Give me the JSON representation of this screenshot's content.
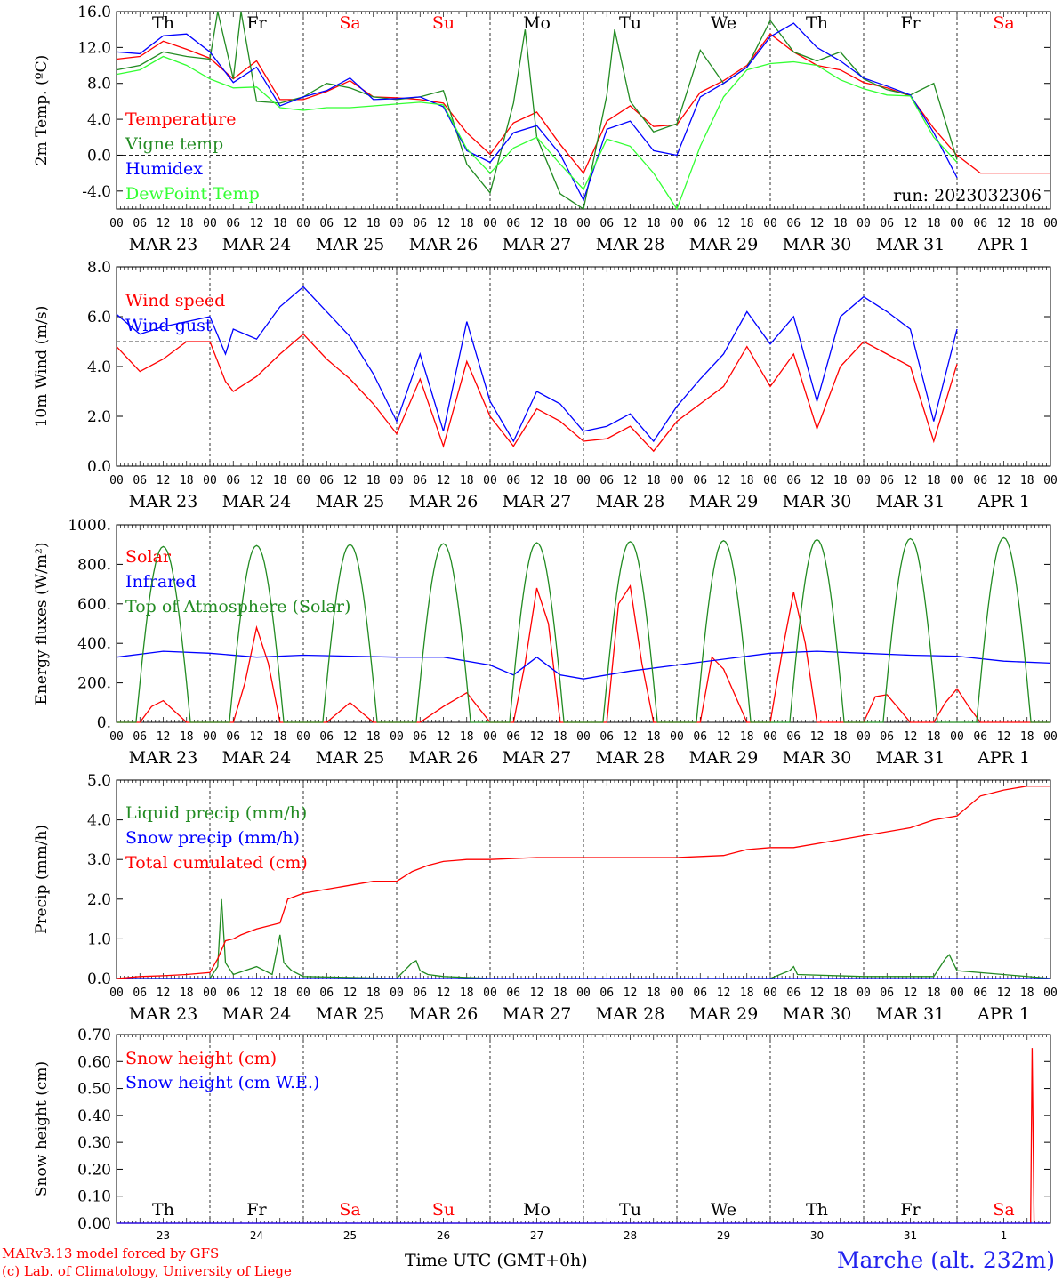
{
  "chart_data": [
    {
      "type": "line",
      "ylabel": "2m Temp. (ºC)",
      "ylim": [
        -6,
        16
      ],
      "yticks": [
        "-4.0",
        "0.0",
        "4.0",
        "8.0",
        "12.0",
        "16.0"
      ],
      "annotation": "run: 2023032306",
      "series": [
        {
          "name": "Temperature",
          "color": "#ff0000",
          "x": [
            0,
            6,
            12,
            18,
            24,
            30,
            36,
            42,
            48,
            54,
            60,
            66,
            72,
            78,
            84,
            90,
            96,
            102,
            108,
            114,
            120,
            126,
            132,
            138,
            144,
            150,
            156,
            162,
            168,
            174,
            180,
            186,
            192,
            198,
            204,
            210,
            216,
            222,
            228,
            234,
            240
          ],
          "y": [
            10.7,
            11,
            12.7,
            11.8,
            10.8,
            8.5,
            10.5,
            6.2,
            6.2,
            7.1,
            8.3,
            6.5,
            6.4,
            6.2,
            5.8,
            2.5,
            0.1,
            3.6,
            4.8,
            1.2,
            -2.0,
            3.8,
            5.5,
            3.2,
            3.4,
            7.0,
            8.3,
            10.0,
            13.5,
            11.5,
            10.0,
            9.5,
            8.1,
            7.5,
            6.6,
            3.0,
            0.0,
            -2,
            -2,
            -2,
            -2
          ]
        },
        {
          "name": "Vigne temp",
          "color": "#228b22",
          "x": [
            0,
            6,
            12,
            18,
            24,
            26,
            30,
            32,
            36,
            42,
            48,
            54,
            60,
            66,
            72,
            78,
            84,
            90,
            96,
            102,
            105,
            108,
            114,
            120,
            126,
            128,
            132,
            138,
            144,
            150,
            156,
            162,
            168,
            174,
            180,
            186,
            192,
            198,
            204,
            210,
            216
          ],
          "y": [
            9.5,
            10,
            11.5,
            11,
            10.7,
            16,
            8.5,
            16,
            6,
            5.8,
            6.5,
            8,
            7.5,
            6.5,
            6.2,
            6.5,
            7.2,
            -1,
            -4.2,
            5.8,
            14,
            2,
            -4.3,
            -6,
            6.7,
            14,
            6,
            2.6,
            3.5,
            11.7,
            8,
            9.8,
            15,
            11.5,
            10.5,
            11.5,
            8.5,
            7.3,
            6.7,
            8,
            -0.5
          ]
        },
        {
          "name": "Humidex",
          "color": "#0000ff",
          "x": [
            0,
            6,
            12,
            18,
            24,
            30,
            36,
            42,
            48,
            54,
            60,
            66,
            72,
            78,
            84,
            90,
            96,
            102,
            108,
            114,
            120,
            126,
            132,
            138,
            144,
            150,
            156,
            162,
            168,
            174,
            180,
            186,
            192,
            198,
            204,
            210,
            216
          ],
          "y": [
            11.5,
            11.3,
            13.3,
            13.5,
            11.5,
            8.1,
            9.8,
            5.5,
            6.5,
            7.2,
            8.6,
            6.2,
            6.3,
            6.5,
            5.4,
            0.5,
            -0.8,
            2.5,
            3.3,
            0.1,
            -5.0,
            2.9,
            3.8,
            0.5,
            0.0,
            6.5,
            8.0,
            9.8,
            13.2,
            14.7,
            12.0,
            10.5,
            8.6,
            7.7,
            6.7,
            2.5,
            -2.5
          ]
        },
        {
          "name": "DewPoint Temp",
          "color": "#33ff33",
          "x": [
            0,
            6,
            12,
            18,
            24,
            30,
            36,
            42,
            48,
            54,
            60,
            66,
            72,
            78,
            84,
            90,
            96,
            102,
            108,
            114,
            120,
            126,
            132,
            138,
            144,
            150,
            156,
            162,
            168,
            174,
            180,
            186,
            192,
            198,
            204,
            210,
            216
          ],
          "y": [
            9,
            9.5,
            11,
            10,
            8.5,
            7.5,
            7.6,
            5.3,
            5.0,
            5.3,
            5.3,
            5.5,
            5.7,
            5.9,
            5.6,
            0.7,
            -2.0,
            0.8,
            2.0,
            -1,
            -3.8,
            1.8,
            1.0,
            -2.0,
            -6.0,
            1.0,
            6.5,
            9.5,
            10.2,
            10.4,
            10.0,
            8.4,
            7.4,
            6.7,
            6.6,
            2.0,
            -0.8
          ]
        }
      ]
    },
    {
      "type": "line",
      "ylabel": "10m Wind (m/s)",
      "ylim": [
        0,
        8
      ],
      "yticks": [
        "0.0",
        "2.0",
        "4.0",
        "6.0",
        "8.0"
      ],
      "series": [
        {
          "name": "Wind speed",
          "color": "#ff0000",
          "x": [
            0,
            6,
            12,
            18,
            24,
            28,
            30,
            36,
            42,
            48,
            54,
            60,
            66,
            72,
            78,
            84,
            90,
            96,
            102,
            108,
            114,
            120,
            126,
            132,
            138,
            144,
            150,
            156,
            162,
            168,
            174,
            180,
            186,
            192,
            198,
            204,
            210,
            216
          ],
          "y": [
            4.8,
            3.8,
            4.3,
            5,
            5,
            3.4,
            3.0,
            3.6,
            4.5,
            5.3,
            4.3,
            3.5,
            2.5,
            1.3,
            3.5,
            0.8,
            4.2,
            2.0,
            0.8,
            2.3,
            1.8,
            1.0,
            1.1,
            1.6,
            0.6,
            1.8,
            2.5,
            3.2,
            4.8,
            3.2,
            4.5,
            1.5,
            4.0,
            5.0,
            4.5,
            4.0,
            1.0,
            4.1
          ]
        },
        {
          "name": "Wind gust",
          "color": "#0000ff",
          "x": [
            0,
            6,
            12,
            18,
            24,
            28,
            30,
            36,
            42,
            48,
            54,
            60,
            66,
            72,
            78,
            84,
            90,
            96,
            102,
            108,
            114,
            120,
            126,
            132,
            138,
            144,
            150,
            156,
            162,
            168,
            174,
            180,
            186,
            192,
            198,
            204,
            210,
            216
          ],
          "y": [
            6.1,
            5.3,
            5.6,
            5.8,
            6.0,
            4.5,
            5.5,
            5.1,
            6.4,
            7.2,
            6.2,
            5.2,
            3.7,
            1.8,
            4.5,
            1.4,
            5.8,
            2.6,
            1.0,
            3.0,
            2.5,
            1.4,
            1.6,
            2.1,
            1.0,
            2.4,
            3.5,
            4.5,
            6.2,
            4.9,
            6.0,
            2.6,
            6.0,
            6.8,
            6.2,
            5.5,
            1.8,
            5.5
          ]
        }
      ]
    },
    {
      "type": "line",
      "ylabel": "Energy fluxes (W/m²)",
      "ylim": [
        0,
        1000
      ],
      "yticks": [
        "0.",
        "200.",
        "400.",
        "600.",
        "800.",
        "1000."
      ],
      "series": [
        {
          "name": "Solar",
          "color": "#ff0000",
          "x": [
            0,
            6,
            9,
            12,
            18,
            24,
            30,
            33,
            36,
            39,
            42,
            48,
            54,
            60,
            66,
            72,
            78,
            84,
            90,
            96,
            102,
            105,
            108,
            111,
            114,
            120,
            126,
            129,
            132,
            135,
            138,
            144,
            150,
            153,
            156,
            162,
            168,
            171,
            174,
            177,
            180,
            186,
            192,
            195,
            198,
            204,
            210,
            213,
            216,
            219,
            222,
            228,
            234,
            240
          ],
          "y": [
            0,
            0,
            80,
            110,
            0,
            0,
            0,
            200,
            480,
            300,
            0,
            0,
            0,
            100,
            0,
            0,
            0,
            80,
            150,
            0,
            0,
            300,
            680,
            500,
            0,
            0,
            0,
            600,
            690,
            300,
            0,
            0,
            0,
            330,
            270,
            0,
            0,
            350,
            660,
            400,
            0,
            0,
            0,
            130,
            140,
            0,
            0,
            100,
            170,
            80,
            0,
            0,
            0,
            0
          ]
        },
        {
          "name": "Infrared",
          "color": "#0000ff",
          "x": [
            0,
            12,
            24,
            36,
            48,
            60,
            72,
            84,
            96,
            102,
            108,
            114,
            120,
            132,
            144,
            156,
            168,
            180,
            192,
            204,
            216,
            228,
            240
          ],
          "y": [
            330,
            360,
            350,
            330,
            340,
            335,
            330,
            330,
            290,
            240,
            330,
            240,
            220,
            260,
            290,
            320,
            350,
            360,
            350,
            340,
            335,
            310,
            300
          ]
        },
        {
          "name": "Top of Atmosphere (Solar)",
          "color": "#228b22",
          "peaks": [
            890,
            895,
            900,
            905,
            910,
            915,
            920,
            925,
            930,
            935,
            940
          ]
        }
      ]
    },
    {
      "type": "line",
      "ylabel": "Precip (mm/h)",
      "ylim": [
        0,
        5
      ],
      "yticks": [
        "0.0",
        "1.0",
        "2.0",
        "3.0",
        "4.0",
        "5.0"
      ],
      "series": [
        {
          "name": "Liquid precip (mm/h)",
          "color": "#228b22",
          "x": [
            0,
            24,
            26,
            27,
            28,
            30,
            36,
            40,
            42,
            43,
            45,
            48,
            72,
            76,
            77,
            78,
            80,
            84,
            96,
            120,
            168,
            173,
            174,
            175,
            192,
            210,
            213,
            214,
            216,
            240
          ],
          "y": [
            0,
            0,
            0.3,
            2.0,
            0.4,
            0.1,
            0.3,
            0.1,
            1.1,
            0.4,
            0.2,
            0.05,
            0.0,
            0.4,
            0.45,
            0.2,
            0.1,
            0.05,
            0.0,
            0.0,
            0.0,
            0.2,
            0.3,
            0.1,
            0.05,
            0.05,
            0.5,
            0.6,
            0.2,
            0.0
          ]
        },
        {
          "name": "Snow precip (mm/h)",
          "color": "#0000ff",
          "x": [
            0,
            240
          ],
          "y": [
            0,
            0
          ]
        },
        {
          "name": "Total cumulated (cm)",
          "color": "#ff0000",
          "x": [
            0,
            6,
            12,
            18,
            24,
            26,
            28,
            30,
            32,
            36,
            42,
            44,
            48,
            54,
            60,
            66,
            72,
            76,
            80,
            84,
            90,
            96,
            108,
            120,
            132,
            144,
            156,
            162,
            168,
            174,
            186,
            192,
            198,
            204,
            210,
            213,
            216,
            222,
            228,
            234,
            240
          ],
          "y": [
            0,
            0.05,
            0.07,
            0.1,
            0.15,
            0.5,
            0.95,
            1.0,
            1.1,
            1.25,
            1.4,
            2.0,
            2.15,
            2.25,
            2.35,
            2.45,
            2.45,
            2.7,
            2.85,
            2.95,
            3.0,
            3.0,
            3.05,
            3.05,
            3.05,
            3.05,
            3.1,
            3.25,
            3.3,
            3.3,
            3.5,
            3.6,
            3.7,
            3.8,
            4.0,
            4.05,
            4.1,
            4.6,
            4.75,
            4.85,
            4.85
          ]
        }
      ]
    },
    {
      "type": "line",
      "ylabel": "Snow height (cm)",
      "ylim": [
        0,
        0.7
      ],
      "yticks": [
        "0.00",
        "0.10",
        "0.20",
        "0.30",
        "0.40",
        "0.50",
        "0.60",
        "0.70"
      ],
      "series": [
        {
          "name": "Snow height (cm)",
          "color": "#ff0000",
          "x": [
            0,
            234.9,
            235.3,
            235.8,
            240
          ],
          "y": [
            0,
            0,
            0.65,
            0,
            0
          ]
        },
        {
          "name": "Snow height (cm W.E.)",
          "color": "#0000ff",
          "x": [
            0,
            240
          ],
          "y": [
            0,
            0
          ]
        }
      ]
    }
  ],
  "dates": [
    "MAR 23",
    "MAR 24",
    "MAR 25",
    "MAR 26",
    "MAR 27",
    "MAR 28",
    "MAR 29",
    "MAR 30",
    "MAR 31",
    "APR  1"
  ],
  "days": [
    {
      "label": "Th",
      "color": "#000000"
    },
    {
      "label": "Fr",
      "color": "#000000"
    },
    {
      "label": "Sa",
      "color": "#ff0000"
    },
    {
      "label": "Su",
      "color": "#ff0000"
    },
    {
      "label": "Mo",
      "color": "#000000"
    },
    {
      "label": "Tu",
      "color": "#000000"
    },
    {
      "label": "We",
      "color": "#000000"
    },
    {
      "label": "Th",
      "color": "#000000"
    },
    {
      "label": "Fr",
      "color": "#000000"
    },
    {
      "label": "Sa",
      "color": "#ff0000"
    }
  ],
  "day_numbers": [
    "23",
    "24",
    "25",
    "26",
    "27",
    "28",
    "29",
    "30",
    "31",
    "1"
  ],
  "hour_labels": [
    "00",
    "06",
    "12",
    "18"
  ],
  "footer": {
    "credit_line1": "MARv3.13 model forced by GFS",
    "credit_line2": "(c) Lab. of Climatology, University of Liege",
    "axis_label": "Time UTC (GMT+0h)",
    "station": "Marche (alt. 232m)"
  }
}
